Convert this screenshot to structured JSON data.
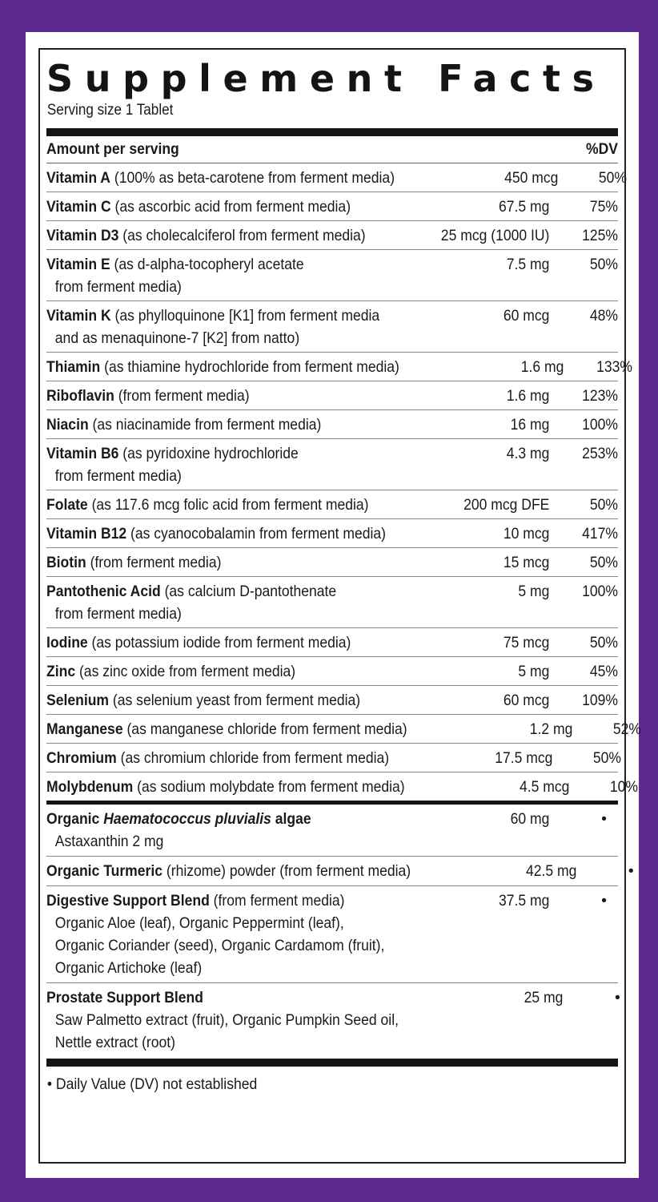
{
  "panel": {
    "title": "Supplement Facts",
    "serving_size": "Serving size 1 Tablet",
    "amount_header": "Amount per serving",
    "dv_header": "%DV",
    "footnote": "• Daily Value (DV) not established"
  },
  "vitamins": [
    {
      "name": "Vitamin A",
      "desc": " (100% as beta-carotene from ferment media)",
      "desc2": "",
      "amount": "450 mcg",
      "dv": "50%"
    },
    {
      "name": "Vitamin C",
      "desc": " (as ascorbic acid from ferment media)",
      "desc2": "",
      "amount": "67.5 mg",
      "dv": "75%"
    },
    {
      "name": "Vitamin D3",
      "desc": " (as cholecalciferol from ferment media)",
      "desc2": "",
      "amount": "25 mcg (1000 IU)",
      "dv": "125%"
    },
    {
      "name": "Vitamin E",
      "desc": " (as d-alpha-tocopheryl acetate",
      "desc2": "from ferment media)",
      "amount": "7.5 mg",
      "dv": "50%"
    },
    {
      "name": "Vitamin K",
      "desc": " (as phylloquinone [K1] from ferment media",
      "desc2": "and as menaquinone-7 [K2] from natto)",
      "amount": "60 mcg",
      "dv": "48%"
    },
    {
      "name": "Thiamin",
      "desc": " (as thiamine hydrochloride from ferment media)",
      "desc2": "",
      "amount": "1.6 mg",
      "dv": "133%"
    },
    {
      "name": "Riboflavin",
      "desc": " (from ferment media)",
      "desc2": "",
      "amount": "1.6 mg",
      "dv": "123%"
    },
    {
      "name": "Niacin",
      "desc": " (as niacinamide from ferment media)",
      "desc2": "",
      "amount": "16 mg",
      "dv": "100%"
    },
    {
      "name": "Vitamin B6",
      "desc": " (as pyridoxine hydrochloride",
      "desc2": "from ferment media)",
      "amount": "4.3 mg",
      "dv": "253%"
    },
    {
      "name": "Folate",
      "desc": " (as 117.6 mcg folic acid from ferment media)",
      "desc2": "",
      "amount": "200 mcg DFE",
      "dv": "50%"
    },
    {
      "name": "Vitamin B12",
      "desc": " (as cyanocobalamin from ferment media)",
      "desc2": "",
      "amount": "10 mcg",
      "dv": "417%"
    },
    {
      "name": "Biotin",
      "desc": " (from ferment media)",
      "desc2": "",
      "amount": "15 mcg",
      "dv": "50%"
    },
    {
      "name": "Pantothenic Acid",
      "desc": " (as calcium D-pantothenate",
      "desc2": "from ferment media)",
      "amount": "5 mg",
      "dv": "100%"
    },
    {
      "name": "Iodine",
      "desc": " (as potassium iodide from ferment media)",
      "desc2": "",
      "amount": "75 mcg",
      "dv": "50%"
    },
    {
      "name": "Zinc",
      "desc": " (as zinc oxide from ferment media)",
      "desc2": "",
      "amount": "5 mg",
      "dv": "45%"
    },
    {
      "name": "Selenium",
      "desc": " (as selenium yeast from ferment media)",
      "desc2": "",
      "amount": "60 mcg",
      "dv": "109%"
    },
    {
      "name": "Manganese",
      "desc": " (as manganese chloride from ferment media)",
      "desc2": "",
      "amount": "1.2 mg",
      "dv": "52%"
    },
    {
      "name": "Chromium",
      "desc": " (as chromium chloride from ferment media)",
      "desc2": "",
      "amount": "17.5 mcg",
      "dv": "50%"
    },
    {
      "name": "Molybdenum",
      "desc": " (as sodium molybdate from ferment media)",
      "desc2": "",
      "amount": "4.5 mcg",
      "dv": "10%"
    }
  ],
  "others": {
    "algae": {
      "prefix": "Organic ",
      "italic": "Haematococcus pluvialis",
      "suffix": " algae",
      "sub": "Astaxanthin 2 mg",
      "amount": "60 mg",
      "dv": "•"
    },
    "turmeric": {
      "name": "Organic Turmeric",
      "desc": " (rhizome) powder (from ferment media)",
      "amount": "42.5 mg",
      "dv": "•"
    },
    "digestive": {
      "name": "Digestive Support Blend",
      "desc": " (from ferment media)",
      "sub1": "Organic Aloe (leaf), Organic Peppermint (leaf),",
      "sub2": "Organic Coriander (seed), Organic Cardamom (fruit),",
      "sub3": "Organic Artichoke (leaf)",
      "amount": "37.5 mg",
      "dv": "•"
    },
    "prostate": {
      "name": "Prostate Support Blend",
      "sub1": "Saw Palmetto extract (fruit), Organic Pumpkin Seed oil,",
      "sub2": "Nettle extract (root)",
      "amount": "25 mg",
      "dv": "•"
    }
  },
  "colors": {
    "border_purple": "#5e2a8f",
    "ink": "#141414"
  }
}
